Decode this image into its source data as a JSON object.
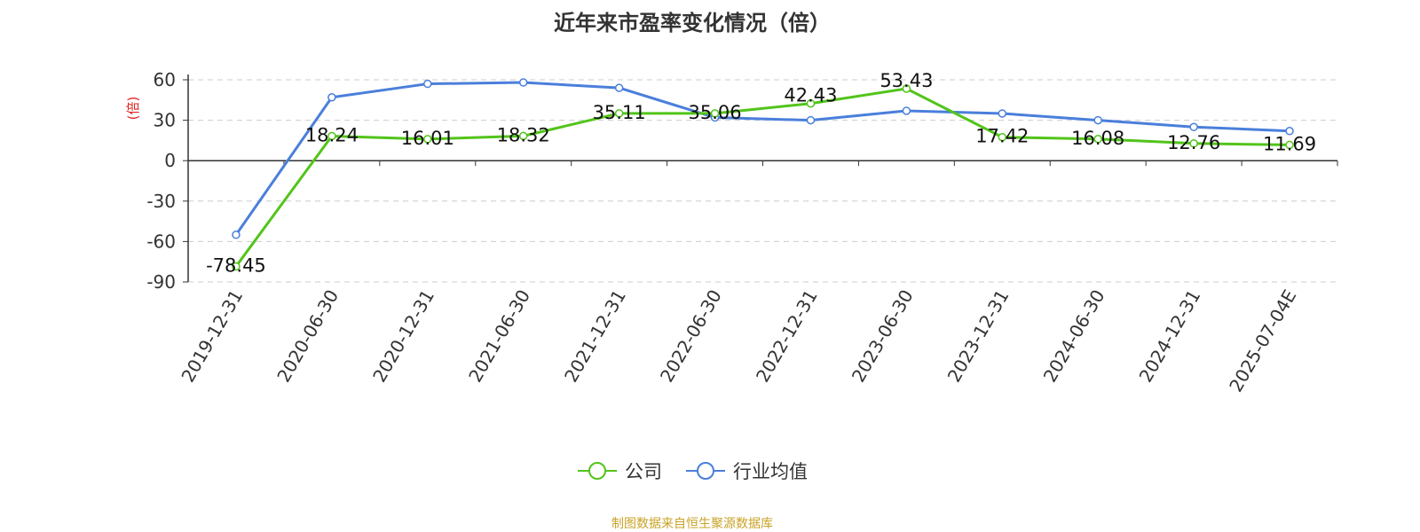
{
  "chart_data": {
    "type": "line",
    "title": "近年来市盈率变化情况（倍）",
    "ylabel": "(倍)",
    "xlabel": "",
    "categories": [
      "2019-12-31",
      "2020-06-30",
      "2020-12-31",
      "2021-06-30",
      "2021-12-31",
      "2022-06-30",
      "2022-12-31",
      "2023-06-30",
      "2023-12-31",
      "2024-06-30",
      "2024-12-31",
      "2025-07-04E"
    ],
    "ylim": [
      -90,
      60
    ],
    "yticks": [
      60,
      30,
      0,
      -30,
      -60,
      -90
    ],
    "grid": true,
    "legend_position": "bottom",
    "series": [
      {
        "name": "公司",
        "color": "#52c41a",
        "values": [
          -78.45,
          18.24,
          16.01,
          18.32,
          35.11,
          35.06,
          42.43,
          53.43,
          17.42,
          16.08,
          12.76,
          11.69
        ],
        "labels": [
          "-78.45",
          "18.24",
          "16.01",
          "18.32",
          "35.11",
          "35.06",
          "42.43",
          "53.43",
          "17.42",
          "16.08",
          "12.76",
          "11.69"
        ]
      },
      {
        "name": "行业均值",
        "color": "#4a7fdb",
        "values": [
          -55,
          47,
          57,
          58,
          54,
          32,
          30,
          37,
          35,
          30,
          25,
          22
        ]
      }
    ]
  },
  "source_note": "制图数据来自恒生聚源数据库"
}
